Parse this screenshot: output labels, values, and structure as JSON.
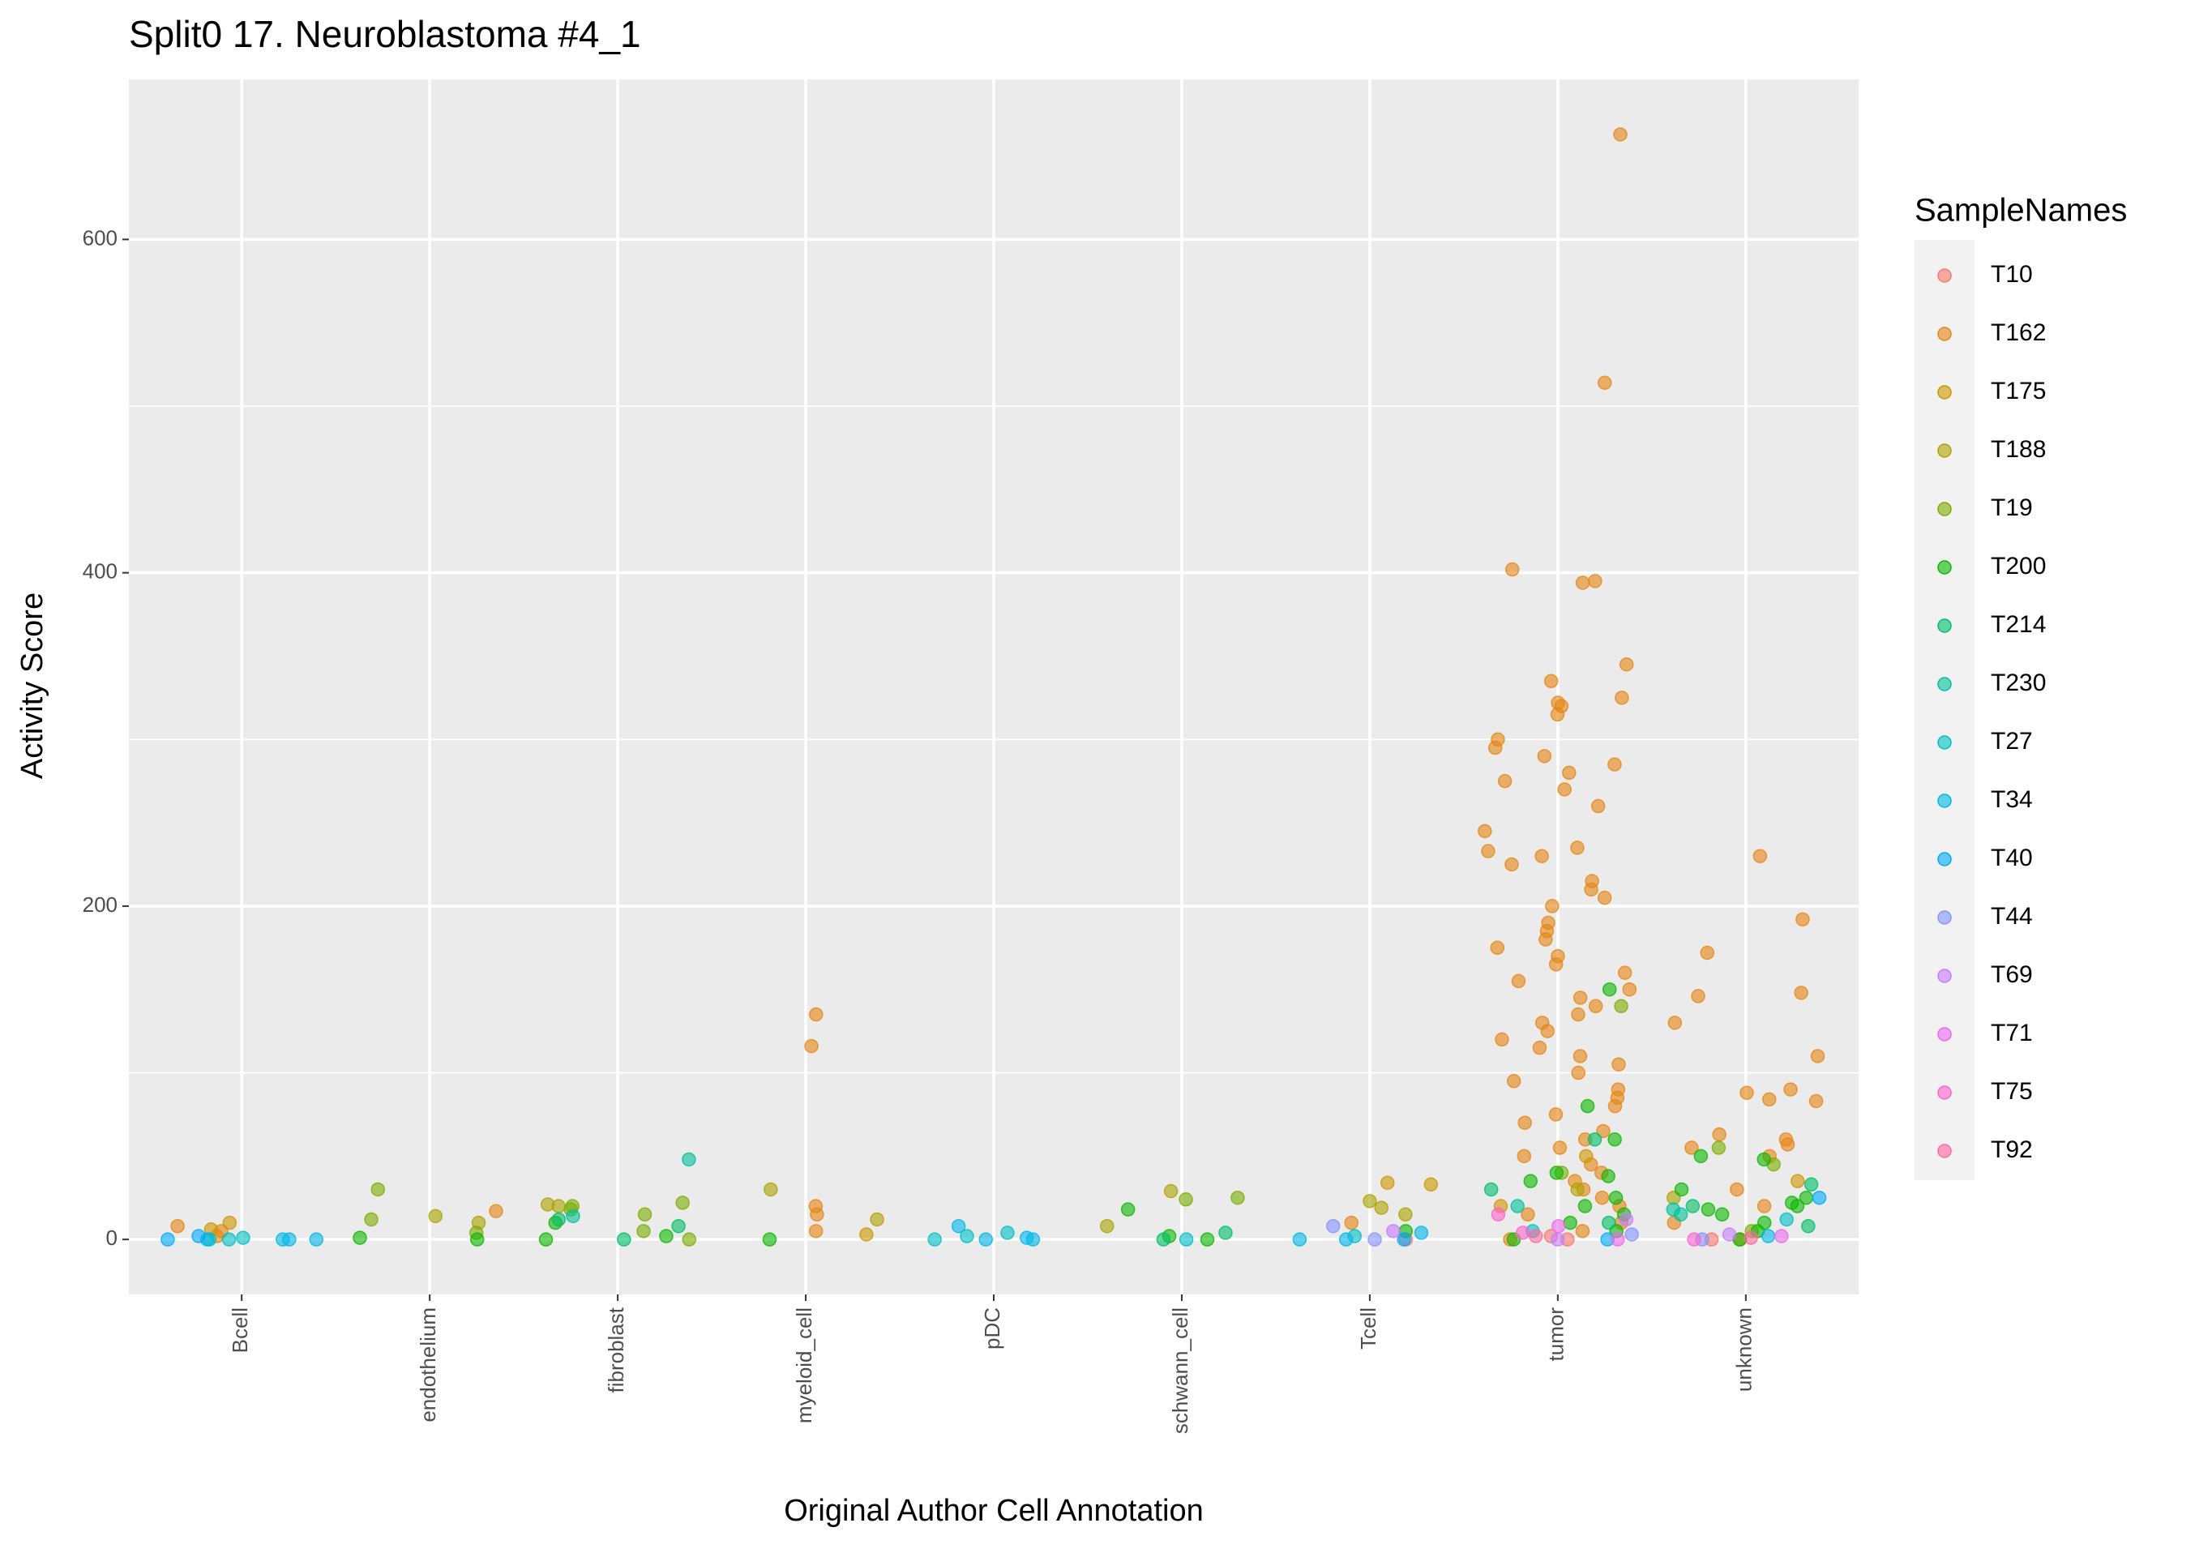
{
  "chart_data": {
    "type": "scatter",
    "title": "Split0 17. Neuroblastoma #4_1",
    "x_label": "Original Author Cell Annotation",
    "y_label": "Activity Score",
    "legend_title": "SampleNames",
    "legend_position": "right",
    "grid": true,
    "categories": [
      "Bcell",
      "endothelium",
      "fibroblast",
      "myeloid_cell",
      "pDC",
      "schwann_cell",
      "Tcell",
      "tumor",
      "unknown"
    ],
    "ylim": [
      -33,
      696
    ],
    "yticks": [
      0,
      200,
      400,
      600
    ],
    "minor_yticks": [
      100,
      300,
      500
    ],
    "series": [
      {
        "name": "T10",
        "color": "#F8766D",
        "x": [
          "Tcell",
          "tumor",
          "tumor",
          "unknown"
        ],
        "values": [
          0,
          0,
          2,
          0
        ]
      },
      {
        "name": "T162",
        "color": "#E68613",
        "x": [
          "Bcell",
          "Bcell",
          "Bcell",
          "endothelium",
          "myeloid_cell",
          "myeloid_cell",
          "myeloid_cell",
          "myeloid_cell",
          "myeloid_cell",
          "Tcell",
          "tumor",
          "tumor",
          "tumor",
          "tumor",
          "tumor",
          "tumor",
          "tumor",
          "tumor",
          "tumor",
          "tumor",
          "tumor",
          "tumor",
          "tumor",
          "tumor",
          "tumor",
          "tumor",
          "tumor",
          "tumor",
          "tumor",
          "tumor",
          "tumor",
          "tumor",
          "tumor",
          "tumor",
          "tumor",
          "tumor",
          "tumor",
          "tumor",
          "tumor",
          "tumor",
          "tumor",
          "tumor",
          "tumor",
          "tumor",
          "tumor",
          "tumor",
          "tumor",
          "tumor",
          "tumor",
          "tumor",
          "tumor",
          "tumor",
          "tumor",
          "tumor",
          "tumor",
          "tumor",
          "tumor",
          "tumor",
          "tumor",
          "tumor",
          "tumor",
          "tumor",
          "tumor",
          "tumor",
          "tumor",
          "tumor",
          "tumor",
          "tumor",
          "tumor",
          "tumor",
          "tumor",
          "tumor",
          "tumor",
          "tumor",
          "tumor",
          "tumor",
          "tumor",
          "unknown",
          "unknown",
          "unknown",
          "unknown",
          "unknown",
          "unknown",
          "unknown",
          "unknown",
          "unknown",
          "unknown",
          "unknown",
          "unknown",
          "unknown",
          "unknown",
          "unknown",
          "unknown",
          "unknown",
          "unknown",
          "unknown",
          "unknown"
        ],
        "values": [
          8,
          5,
          2,
          17,
          116,
          135,
          20,
          15,
          5,
          10,
          663,
          514,
          402,
          395,
          394,
          345,
          335,
          325,
          322,
          320,
          315,
          300,
          295,
          290,
          285,
          280,
          275,
          270,
          260,
          245,
          235,
          233,
          230,
          225,
          215,
          210,
          205,
          200,
          190,
          185,
          180,
          175,
          170,
          165,
          160,
          155,
          150,
          145,
          140,
          135,
          130,
          125,
          120,
          115,
          110,
          105,
          100,
          95,
          90,
          85,
          80,
          75,
          70,
          65,
          60,
          55,
          50,
          45,
          40,
          35,
          30,
          25,
          20,
          15,
          10,
          5,
          0,
          230,
          192,
          172,
          148,
          146,
          130,
          110,
          90,
          88,
          84,
          83,
          63,
          60,
          57,
          55,
          50,
          30,
          20,
          10,
          0
        ]
      },
      {
        "name": "T175",
        "color": "#CD9600",
        "x": [
          "Bcell",
          "Bcell",
          "myeloid_cell",
          "Tcell",
          "Tcell",
          "tumor",
          "tumor",
          "unknown"
        ],
        "values": [
          10,
          6,
          3,
          34,
          33,
          50,
          20,
          35
        ]
      },
      {
        "name": "T188",
        "color": "#ABA300",
        "x": [
          "endothelium",
          "endothelium",
          "fibroblast",
          "fibroblast",
          "myeloid_cell",
          "myeloid_cell",
          "schwann_cell",
          "schwann_cell",
          "Tcell",
          "Tcell",
          "Tcell",
          "tumor",
          "unknown"
        ],
        "values": [
          10,
          14,
          21,
          20,
          30,
          12,
          29,
          8,
          23,
          19,
          15,
          30,
          25
        ]
      },
      {
        "name": "T19",
        "color": "#7CAE00",
        "x": [
          "endothelium",
          "endothelium",
          "endothelium",
          "fibroblast",
          "fibroblast",
          "fibroblast",
          "fibroblast",
          "fibroblast",
          "fibroblast",
          "schwann_cell",
          "schwann_cell",
          "tumor",
          "tumor",
          "unknown",
          "unknown",
          "unknown"
        ],
        "values": [
          30,
          12,
          4,
          20,
          18,
          15,
          22,
          5,
          0,
          25,
          24,
          140,
          40,
          55,
          45,
          5
        ]
      },
      {
        "name": "T200",
        "color": "#0CB702",
        "x": [
          "endothelium",
          "endothelium",
          "fibroblast",
          "fibroblast",
          "fibroblast",
          "myeloid_cell",
          "schwann_cell",
          "schwann_cell",
          "schwann_cell",
          "Tcell",
          "tumor",
          "tumor",
          "tumor",
          "tumor",
          "tumor",
          "tumor",
          "tumor",
          "tumor",
          "tumor",
          "tumor",
          "tumor",
          "tumor",
          "unknown",
          "unknown",
          "unknown",
          "unknown",
          "unknown",
          "unknown",
          "unknown",
          "unknown",
          "unknown",
          "unknown",
          "unknown"
        ],
        "values": [
          0,
          1,
          0,
          2,
          10,
          0,
          18,
          0,
          2,
          5,
          150,
          80,
          60,
          40,
          38,
          35,
          25,
          20,
          15,
          10,
          5,
          0,
          50,
          48,
          30,
          25,
          22,
          20,
          18,
          15,
          10,
          5,
          0
        ]
      },
      {
        "name": "T214",
        "color": "#00BE67",
        "x": [
          "fibroblast",
          "fibroblast",
          "fibroblast",
          "schwann_cell",
          "schwann_cell",
          "tumor",
          "tumor",
          "tumor",
          "unknown",
          "unknown",
          "unknown"
        ],
        "values": [
          12,
          8,
          0,
          4,
          0,
          60,
          30,
          10,
          33,
          20,
          8
        ]
      },
      {
        "name": "T230",
        "color": "#00C19A",
        "x": [
          "fibroblast",
          "fibroblast",
          "tumor",
          "unknown",
          "unknown"
        ],
        "values": [
          48,
          14,
          20,
          18,
          15
        ]
      },
      {
        "name": "T27",
        "color": "#00BFC4",
        "x": [
          "Bcell",
          "Bcell",
          "Bcell",
          "pDC",
          "pDC",
          "pDC",
          "schwann_cell",
          "Tcell",
          "tumor",
          "unknown"
        ],
        "values": [
          0,
          0,
          1,
          0,
          4,
          2,
          0,
          2,
          5,
          12
        ]
      },
      {
        "name": "T34",
        "color": "#00B8E7",
        "x": [
          "Bcell",
          "Bcell",
          "Bcell",
          "Bcell",
          "pDC",
          "pDC",
          "pDC",
          "pDC",
          "Tcell",
          "Tcell",
          "Tcell",
          "unknown"
        ],
        "values": [
          0,
          0,
          0,
          0,
          8,
          0,
          0,
          1,
          0,
          0,
          4,
          2
        ]
      },
      {
        "name": "T40",
        "color": "#00A9FF",
        "x": [
          "Bcell",
          "Bcell",
          "Tcell",
          "tumor",
          "unknown"
        ],
        "values": [
          0,
          2,
          0,
          0,
          25
        ]
      },
      {
        "name": "T44",
        "color": "#8494FF",
        "x": [
          "Tcell",
          "Tcell",
          "tumor",
          "unknown"
        ],
        "values": [
          8,
          0,
          3,
          0
        ]
      },
      {
        "name": "T69",
        "color": "#C77CFF",
        "x": [
          "Tcell",
          "tumor",
          "tumor",
          "unknown"
        ],
        "values": [
          5,
          12,
          0,
          3
        ]
      },
      {
        "name": "T71",
        "color": "#ED68ED",
        "x": [
          "tumor",
          "tumor",
          "unknown"
        ],
        "values": [
          8,
          0,
          2
        ]
      },
      {
        "name": "T75",
        "color": "#FF61CC",
        "x": [
          "tumor",
          "tumor",
          "unknown"
        ],
        "values": [
          15,
          4,
          0
        ]
      },
      {
        "name": "T92",
        "color": "#FF68A1",
        "x": [
          "tumor",
          "unknown"
        ],
        "values": [
          2,
          1
        ]
      }
    ]
  }
}
